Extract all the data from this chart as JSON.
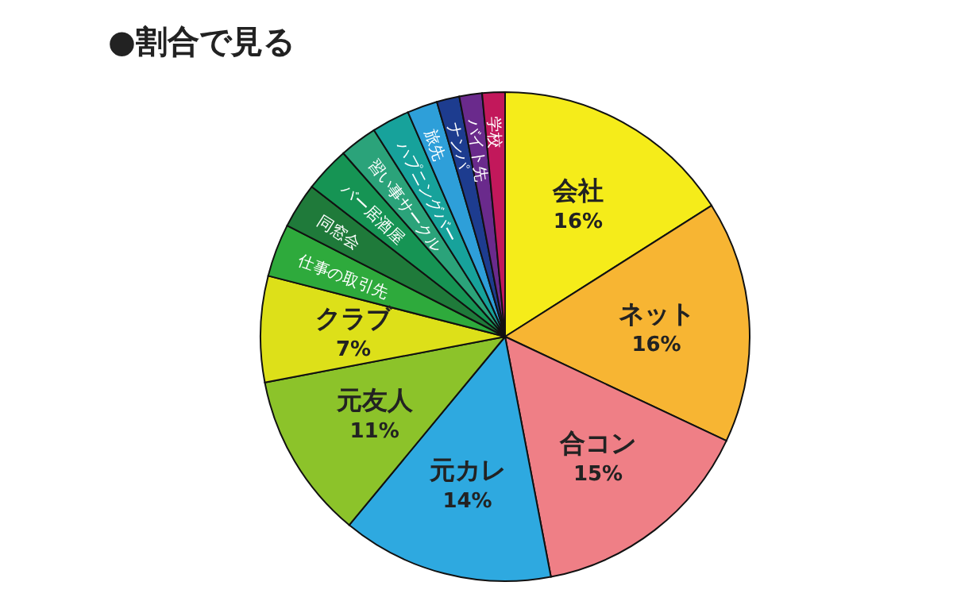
{
  "chart_data": {
    "type": "pie",
    "title": "●割合で見る",
    "categories": [
      "会社",
      "ネット",
      "合コン",
      "元カレ",
      "元友人",
      "クラブ",
      "仕事の取引先",
      "同窓会",
      "バー居酒屋",
      "習い事サークル",
      "ハプニングバー",
      "旅先",
      "ナンパ",
      "バイト先",
      "学校"
    ],
    "values": [
      16,
      16,
      15,
      14,
      11,
      7,
      3.5,
      3,
      3,
      2.5,
      2.5,
      2,
      1.5,
      1.5,
      1.5
    ],
    "value_labels": [
      "16%",
      "16%",
      "15%",
      "14%",
      "11%",
      "7%",
      null,
      null,
      null,
      null,
      null,
      null,
      null,
      null,
      null
    ],
    "colors": [
      "#f5ec1a",
      "#f7b533",
      "#ef7f86",
      "#2ea9e0",
      "#8cc32a",
      "#dde019",
      "#2eaa3c",
      "#1f7a3a",
      "#169454",
      "#2ba37a",
      "#17a29b",
      "#2e9fd9",
      "#1d3c8f",
      "#6a2a8c",
      "#c2185b"
    ]
  }
}
